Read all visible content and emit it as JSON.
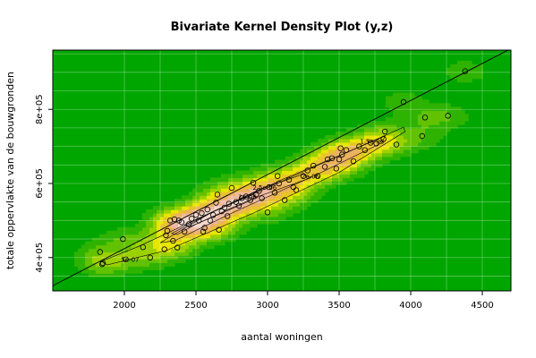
{
  "chart_data": {
    "type": "scatter",
    "title": "Bivariate Kernel Density Plot (y,z)",
    "xlabel": "aantal woningen",
    "ylabel": "totale oppervlakte van de bouwgronden",
    "xlim": [
      1500,
      4700
    ],
    "ylim": [
      310000,
      960000
    ],
    "x_ticks": [
      2000,
      2500,
      3000,
      3500,
      4000,
      4500
    ],
    "x_tick_labels": [
      "2000",
      "2500",
      "3000",
      "3500",
      "4000",
      "4500"
    ],
    "y_ticks": [
      400000,
      600000,
      800000
    ],
    "y_tick_labels": [
      "4e+05",
      "6e+05",
      "8e+05"
    ],
    "grid": true,
    "background_color": "#00a600",
    "density_colors": [
      "#00a600",
      "#2eb300",
      "#62c200",
      "#9cd100",
      "#e6e600",
      "#e8c32e",
      "#ebb25e",
      "#eeb99f",
      "#f2d7cc"
    ],
    "contour_labels": [
      {
        "text": "5e-07",
        "x": 2040,
        "y": 388000
      },
      {
        "text": "1e-06",
        "x": 2860,
        "y": 558000
      },
      {
        "text": "2.5e-06",
        "x": 2980,
        "y": 583000
      },
      {
        "text": "2e-06",
        "x": 3300,
        "y": 613000
      },
      {
        "text": "1.5e-06",
        "x": 3730,
        "y": 707000
      }
    ],
    "regression_line": {
      "intercept": 24000,
      "slope": 200
    },
    "points": {
      "x": [
        1830,
        1845,
        1850,
        1990,
        2010,
        2130,
        2180,
        2280,
        2290,
        2300,
        2320,
        2340,
        2350,
        2370,
        2380,
        2400,
        2420,
        2450,
        2470,
        2500,
        2520,
        2540,
        2550,
        2560,
        2580,
        2600,
        2620,
        2640,
        2650,
        2660,
        2680,
        2700,
        2720,
        2730,
        2750,
        2780,
        2800,
        2820,
        2850,
        2880,
        2900,
        2920,
        2940,
        2960,
        3000,
        3010,
        3050,
        3070,
        3080,
        3120,
        3150,
        3180,
        3200,
        3250,
        3280,
        3320,
        3350,
        3400,
        3420,
        3450,
        3480,
        3500,
        3510,
        3520,
        3550,
        3600,
        3640,
        3680,
        3720,
        3760,
        3810,
        3820,
        3900,
        3950,
        4080,
        4100,
        4260,
        4380
      ],
      "y": [
        415000,
        382000,
        385000,
        450000,
        395000,
        428000,
        400000,
        422000,
        460000,
        472000,
        500000,
        445000,
        503000,
        427000,
        500000,
        495000,
        470000,
        490000,
        505000,
        515000,
        500000,
        520000,
        470000,
        480000,
        530000,
        500000,
        515000,
        548000,
        570000,
        475000,
        525000,
        535000,
        512000,
        545000,
        588000,
        550000,
        540000,
        560000,
        565000,
        555000,
        602000,
        570000,
        580000,
        560000,
        522000,
        590000,
        575000,
        620000,
        600000,
        555000,
        610000,
        590000,
        582000,
        620000,
        635000,
        648000,
        620000,
        645000,
        665000,
        668000,
        640000,
        665000,
        695000,
        678000,
        690000,
        660000,
        700000,
        690000,
        710000,
        708000,
        720000,
        740000,
        705000,
        820000,
        728000,
        778000,
        783000,
        903000
      ]
    }
  }
}
